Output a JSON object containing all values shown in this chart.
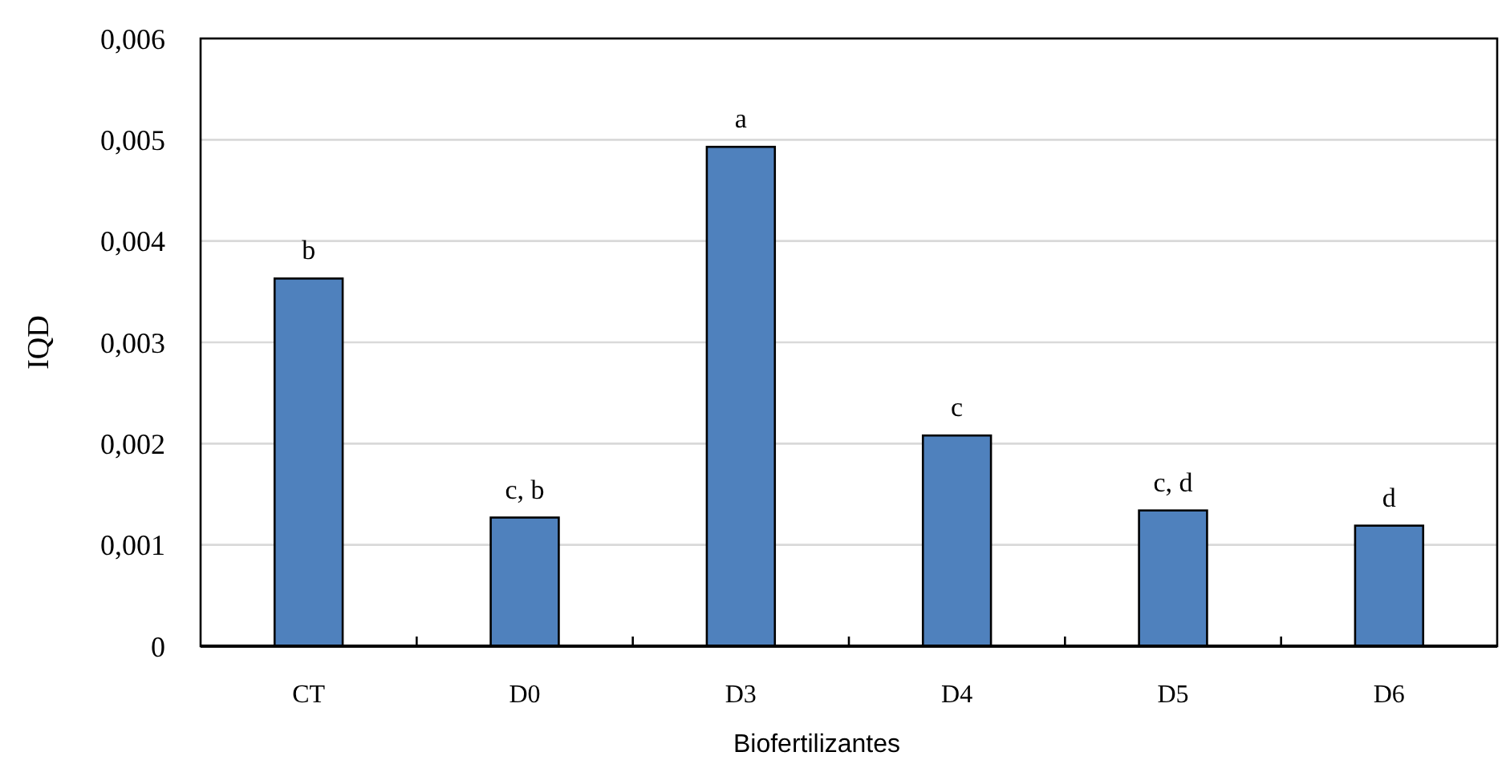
{
  "chart_data": {
    "type": "bar",
    "xlabel": "Biofertilizantes",
    "ylabel": "IQD",
    "categories": [
      "CT",
      "D0",
      "D3",
      "D4",
      "D5",
      "D6"
    ],
    "values": [
      0.00363,
      0.00127,
      0.00493,
      0.00208,
      0.00134,
      0.00119
    ],
    "color": "#4f81bd",
    "ylim": [
      0,
      0.006
    ],
    "yticks": [
      0,
      {
        "value": 0.001,
        "label": "0,001"
      },
      {
        "value": 0.002,
        "label": "0,002"
      },
      {
        "value": 0.003,
        "label": "0,003"
      },
      {
        "value": 0.004,
        "label": "0,004"
      },
      {
        "value": 0.005,
        "label": "0,005"
      },
      {
        "value": 0.006,
        "label": "0,006"
      }
    ],
    "grid": "y",
    "annotations": [
      {
        "text": "b",
        "x": "CT",
        "y": 0.00363
      },
      {
        "text": "c, b",
        "x": "D0",
        "y": 0.00127
      },
      {
        "text": "a",
        "x": "D3",
        "y": 0.00493
      },
      {
        "text": "c",
        "x": "D4",
        "y": 0.00208
      },
      {
        "text": "c, d",
        "x": "D5",
        "y": 0.00134
      },
      {
        "text": "d",
        "x": "D6",
        "y": 0.00119
      }
    ]
  }
}
